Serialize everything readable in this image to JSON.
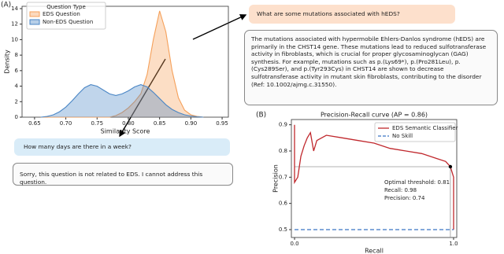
{
  "chart_data": [
    {
      "type": "area",
      "panel_label": "(A)",
      "x_label": "Similarity Score",
      "y_label": "Density",
      "legend_title": "Question Type",
      "legend": "upper left",
      "x": [
        0.66,
        0.67,
        0.68,
        0.69,
        0.7,
        0.71,
        0.72,
        0.73,
        0.74,
        0.75,
        0.76,
        0.77,
        0.78,
        0.79,
        0.8,
        0.81,
        0.82,
        0.83,
        0.84,
        0.85,
        0.86,
        0.87,
        0.88,
        0.89,
        0.9,
        0.91,
        0.92
      ],
      "series": [
        {
          "name": "EDS Question",
          "color": "#f5a05a",
          "values": [
            0,
            0,
            0,
            0,
            0,
            0,
            0,
            0,
            0,
            0,
            0,
            0,
            0.2,
            0.6,
            1.2,
            2,
            3,
            5.5,
            10,
            13.7,
            11,
            6,
            2.5,
            0.9,
            0.3,
            0.1,
            0
          ]
        },
        {
          "name": "Non-EDS Question",
          "color": "#4a86c5",
          "values": [
            0,
            0.1,
            0.3,
            0.7,
            1.3,
            2.1,
            3,
            3.8,
            4.2,
            4,
            3.5,
            3,
            2.8,
            3,
            3.4,
            3.9,
            4.2,
            3.9,
            3.2,
            2.4,
            1.6,
            1,
            0.6,
            0.3,
            0.15,
            0.05,
            0
          ]
        }
      ],
      "xlim": [
        0.63,
        0.96
      ],
      "xticks": [
        0.65,
        {
          "value": 0.7,
          "label": "0.70"
        },
        0.75,
        {
          "value": 0.8,
          "label": "0.80"
        },
        0.85,
        {
          "value": 0.9,
          "label": "0.90"
        },
        0.95
      ],
      "ylim": [
        0,
        14.3
      ],
      "yticks": [
        0,
        2,
        4,
        6,
        8,
        10,
        12,
        14
      ],
      "annotations": [
        "What are some mutations associated with hEDS?",
        "The mutations associated with hypermobile Ehlers-Danlos syndrome (hEDS) are primarily in the CHST14 gene. These mutations lead to reduced sulfotransferase activity in fibroblasts, which is crucial for proper glycosaminoglycan (GAG) synthesis. For example, mutations such as p.(Lys69*), p.(Pro281Leu), p.(Cys289Ser), and p.(Tyr293Cys) in CHST14 are shown to decrease sulfotransferase activity in mutant skin fibroblasts, contributing to the disorder (Ref: 10.1002/ajmg.c.31550).",
        "How many days are there in a week?",
        "Sorry, this question is not related to EDS. I cannot address this question."
      ]
    },
    {
      "type": "line",
      "panel_label": "(B)",
      "title": "Precision-Recall curve (AP = 0.86)",
      "x_label": "Recall",
      "y_label": "Precision",
      "legend": "upper right",
      "series": [
        {
          "name": "EDS Semantic Classifier",
          "color": "#c0282d",
          "dash": false,
          "x": [
            0,
            0,
            0.02,
            0.04,
            0.06,
            0.08,
            0.1,
            0.12,
            0.14,
            0.2,
            0.3,
            0.4,
            0.5,
            0.6,
            0.7,
            0.8,
            0.9,
            0.95,
            0.98,
            1,
            1
          ],
          "values": [
            0.9,
            0.68,
            0.7,
            0.78,
            0.82,
            0.85,
            0.87,
            0.8,
            0.84,
            0.86,
            0.85,
            0.84,
            0.83,
            0.81,
            0.8,
            0.79,
            0.77,
            0.76,
            0.74,
            0.7,
            0.5
          ]
        },
        {
          "name": "No Skill",
          "color": "#3a73c4",
          "dash": true,
          "x": [
            0,
            1
          ],
          "values": [
            0.5,
            0.5
          ]
        }
      ],
      "threshold": {
        "x": 0.98,
        "y": 0.74,
        "text": [
          "Optimal threshold: 0.81",
          "Recall: 0.98",
          "Precision: 0.74"
        ]
      },
      "xlim": [
        -0.02,
        1.02
      ],
      "xticks": [
        {
          "value": 0,
          "label": "0.0"
        },
        {
          "value": 1,
          "label": "1.0"
        }
      ],
      "ylim": [
        0.47,
        0.92
      ],
      "yticks": [
        0.5,
        0.6,
        0.7,
        0.8,
        0.9
      ]
    }
  ]
}
